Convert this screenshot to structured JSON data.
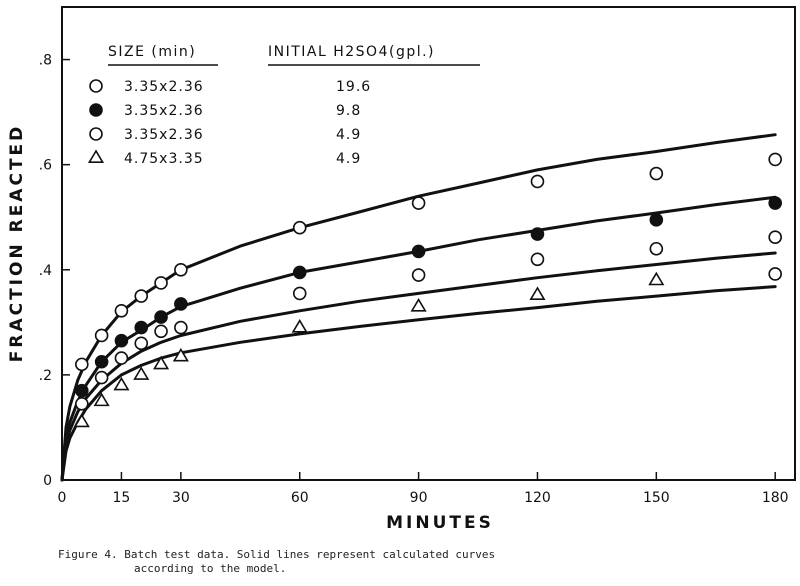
{
  "chart_data": {
    "type": "scatter",
    "xlabel": "MINUTES",
    "ylabel": "FRACTION REACTED",
    "xlim": [
      0,
      185
    ],
    "ylim": [
      0,
      0.9
    ],
    "xticks": [
      0,
      15,
      30,
      60,
      90,
      120,
      150,
      180
    ],
    "xtick_labels": [
      "0",
      "15",
      "30",
      "60",
      "90",
      "120",
      "150",
      "180"
    ],
    "yticks": [
      0,
      0.2,
      0.4,
      0.6,
      0.8
    ],
    "ytick_labels": [
      "0",
      ".2",
      ".4",
      ".6",
      ".8"
    ],
    "legend": {
      "header_size": "SIZE (min)",
      "header_initial": "INITIAL  H2SO4(gpl.)",
      "position": "top-left"
    },
    "series": [
      {
        "size": "3.35x2.36",
        "initial": "19.6",
        "marker": "open-circle",
        "points": [
          [
            5,
            0.22
          ],
          [
            10,
            0.275
          ],
          [
            15,
            0.322
          ],
          [
            20,
            0.35
          ],
          [
            25,
            0.375
          ],
          [
            30,
            0.4
          ],
          [
            60,
            0.48
          ],
          [
            90,
            0.527
          ],
          [
            120,
            0.568
          ],
          [
            150,
            0.583
          ],
          [
            180,
            0.61
          ]
        ],
        "curve": [
          [
            0,
            0
          ],
          [
            1,
            0.1
          ],
          [
            2,
            0.14
          ],
          [
            4,
            0.19
          ],
          [
            6,
            0.225
          ],
          [
            10,
            0.275
          ],
          [
            15,
            0.32
          ],
          [
            20,
            0.35
          ],
          [
            25,
            0.375
          ],
          [
            30,
            0.4
          ],
          [
            45,
            0.445
          ],
          [
            60,
            0.48
          ],
          [
            75,
            0.51
          ],
          [
            90,
            0.54
          ],
          [
            105,
            0.565
          ],
          [
            120,
            0.59
          ],
          [
            135,
            0.61
          ],
          [
            150,
            0.625
          ],
          [
            165,
            0.642
          ],
          [
            180,
            0.657
          ]
        ]
      },
      {
        "size": "3.35x2.36",
        "initial": "9.8",
        "marker": "filled-circle",
        "points": [
          [
            5,
            0.17
          ],
          [
            10,
            0.225
          ],
          [
            15,
            0.265
          ],
          [
            20,
            0.29
          ],
          [
            25,
            0.31
          ],
          [
            30,
            0.335
          ],
          [
            60,
            0.395
          ],
          [
            90,
            0.435
          ],
          [
            120,
            0.468
          ],
          [
            150,
            0.495
          ],
          [
            180,
            0.527
          ]
        ],
        "curve": [
          [
            0,
            0
          ],
          [
            1,
            0.08
          ],
          [
            2,
            0.11
          ],
          [
            4,
            0.15
          ],
          [
            6,
            0.18
          ],
          [
            10,
            0.225
          ],
          [
            15,
            0.262
          ],
          [
            20,
            0.285
          ],
          [
            25,
            0.31
          ],
          [
            30,
            0.33
          ],
          [
            45,
            0.365
          ],
          [
            60,
            0.395
          ],
          [
            75,
            0.415
          ],
          [
            90,
            0.435
          ],
          [
            105,
            0.457
          ],
          [
            120,
            0.475
          ],
          [
            135,
            0.493
          ],
          [
            150,
            0.508
          ],
          [
            165,
            0.524
          ],
          [
            180,
            0.538
          ]
        ]
      },
      {
        "size": "3.35x2.36",
        "initial": "4.9",
        "marker": "open-circle",
        "points": [
          [
            5,
            0.145
          ],
          [
            10,
            0.195
          ],
          [
            15,
            0.232
          ],
          [
            20,
            0.26
          ],
          [
            25,
            0.283
          ],
          [
            30,
            0.29
          ],
          [
            60,
            0.355
          ],
          [
            90,
            0.39
          ],
          [
            120,
            0.42
          ],
          [
            150,
            0.44
          ],
          [
            180,
            0.462
          ],
          [
            180,
            0.392
          ]
        ],
        "curve": [
          [
            0,
            0
          ],
          [
            1,
            0.07
          ],
          [
            2,
            0.095
          ],
          [
            4,
            0.13
          ],
          [
            6,
            0.155
          ],
          [
            10,
            0.19
          ],
          [
            15,
            0.222
          ],
          [
            20,
            0.245
          ],
          [
            25,
            0.262
          ],
          [
            30,
            0.275
          ],
          [
            45,
            0.302
          ],
          [
            60,
            0.322
          ],
          [
            75,
            0.34
          ],
          [
            90,
            0.355
          ],
          [
            105,
            0.37
          ],
          [
            120,
            0.385
          ],
          [
            135,
            0.398
          ],
          [
            150,
            0.41
          ],
          [
            165,
            0.422
          ],
          [
            180,
            0.432
          ]
        ]
      },
      {
        "size": "4.75x3.35",
        "initial": "4.9",
        "marker": "open-triangle",
        "points": [
          [
            5,
            0.11
          ],
          [
            10,
            0.15
          ],
          [
            15,
            0.18
          ],
          [
            20,
            0.2
          ],
          [
            25,
            0.22
          ],
          [
            30,
            0.235
          ],
          [
            60,
            0.29
          ],
          [
            90,
            0.33
          ],
          [
            120,
            0.352
          ],
          [
            150,
            0.38
          ]
        ],
        "curve": [
          [
            0,
            0
          ],
          [
            1,
            0.055
          ],
          [
            2,
            0.08
          ],
          [
            4,
            0.11
          ],
          [
            6,
            0.135
          ],
          [
            10,
            0.17
          ],
          [
            15,
            0.2
          ],
          [
            20,
            0.218
          ],
          [
            25,
            0.232
          ],
          [
            30,
            0.242
          ],
          [
            45,
            0.262
          ],
          [
            60,
            0.278
          ],
          [
            75,
            0.292
          ],
          [
            90,
            0.305
          ],
          [
            105,
            0.317
          ],
          [
            120,
            0.328
          ],
          [
            135,
            0.34
          ],
          [
            150,
            0.35
          ],
          [
            165,
            0.36
          ],
          [
            180,
            0.368
          ]
        ]
      }
    ]
  },
  "caption": {
    "line1": "Figure 4.  Batch test data.  Solid lines represent calculated curves",
    "line2": "according to the model."
  }
}
